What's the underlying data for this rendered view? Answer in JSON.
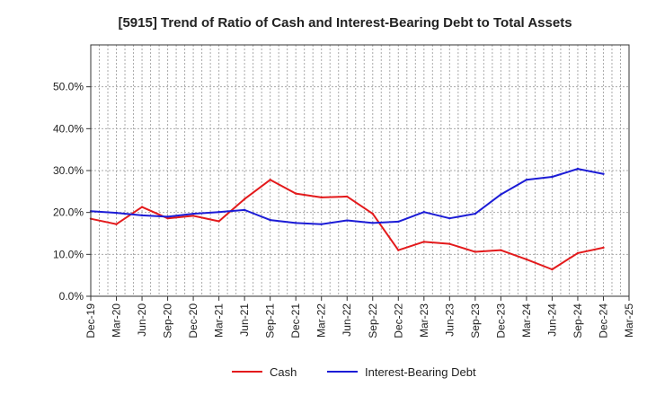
{
  "chart_data": {
    "type": "line",
    "title": "[5915]  Trend of Ratio of Cash and Interest-Bearing Debt to Total Assets",
    "xlabel": "",
    "ylabel": "",
    "x": [
      "Dec-19",
      "Mar-20",
      "Jun-20",
      "Sep-20",
      "Dec-20",
      "Mar-21",
      "Jun-21",
      "Sep-21",
      "Dec-21",
      "Mar-22",
      "Jun-22",
      "Sep-22",
      "Dec-22",
      "Mar-23",
      "Jun-23",
      "Sep-23",
      "Dec-23",
      "Mar-24",
      "Jun-24",
      "Sep-24",
      "Dec-24",
      "Mar-25"
    ],
    "ylim": [
      0,
      60
    ],
    "yticks": [
      0,
      10,
      20,
      30,
      40,
      50
    ],
    "ytick_labels": [
      "0.0%",
      "10.0%",
      "20.0%",
      "30.0%",
      "40.0%",
      "50.0%"
    ],
    "grid": true,
    "legend_position": "bottom",
    "series": [
      {
        "name": "Cash",
        "color": "#e31a1c",
        "values": [
          18.5,
          17.2,
          21.3,
          18.6,
          19.2,
          17.9,
          23.2,
          27.8,
          24.5,
          23.6,
          23.8,
          19.7,
          11.0,
          13.0,
          12.5,
          10.6,
          11.0,
          8.8,
          6.4,
          10.3,
          11.6,
          null
        ]
      },
      {
        "name": "Interest-Bearing Debt",
        "color": "#1c1cd6",
        "values": [
          20.3,
          19.9,
          19.3,
          19.0,
          19.7,
          20.1,
          20.6,
          18.2,
          17.5,
          17.2,
          18.1,
          17.5,
          17.8,
          20.1,
          18.6,
          19.7,
          24.3,
          27.8,
          28.5,
          30.4,
          29.2,
          null
        ]
      }
    ]
  }
}
